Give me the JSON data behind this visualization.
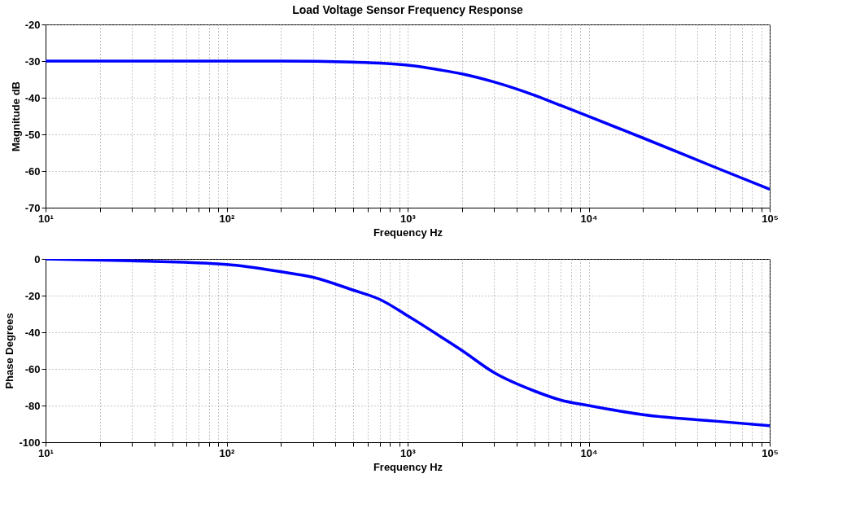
{
  "chart_data": [
    {
      "type": "line",
      "title": "Load Voltage Sensor Frequency Response",
      "xlabel": "Frequency Hz",
      "ylabel": "Magnitude dB",
      "log": "x",
      "x": [
        10,
        100,
        200,
        500,
        1000,
        1500,
        2000,
        3000,
        5000,
        7000,
        10000,
        20000,
        50000,
        100000
      ],
      "series": [
        {
          "color": "#0000ff",
          "values": [
            -30,
            -30,
            -30,
            -30.3,
            -31.1,
            -32.4,
            -33.5,
            -35.7,
            -39.3,
            -42.1,
            -45.1,
            -51.0,
            -59.0,
            -65.0
          ]
        }
      ],
      "xlim": [
        10,
        100000
      ],
      "ylim": [
        -70,
        -20
      ],
      "xticks": [
        {
          "value": 10,
          "label": "10¹"
        },
        {
          "value": 20,
          "label": null
        },
        {
          "value": 30,
          "label": null
        },
        {
          "value": 40,
          "label": null
        },
        {
          "value": 50,
          "label": null
        },
        {
          "value": 60,
          "label": null
        },
        {
          "value": 70,
          "label": null
        },
        {
          "value": 80,
          "label": null
        },
        {
          "value": 90,
          "label": null
        },
        {
          "value": 100,
          "label": "10²"
        },
        {
          "value": 200,
          "label": null
        },
        {
          "value": 300,
          "label": null
        },
        {
          "value": 400,
          "label": null
        },
        {
          "value": 500,
          "label": null
        },
        {
          "value": 600,
          "label": null
        },
        {
          "value": 700,
          "label": null
        },
        {
          "value": 800,
          "label": null
        },
        {
          "value": 900,
          "label": null
        },
        {
          "value": 1000,
          "label": "10³"
        },
        {
          "value": 2000,
          "label": null
        },
        {
          "value": 3000,
          "label": null
        },
        {
          "value": 4000,
          "label": null
        },
        {
          "value": 5000,
          "label": null
        },
        {
          "value": 6000,
          "label": null
        },
        {
          "value": 7000,
          "label": null
        },
        {
          "value": 8000,
          "label": null
        },
        {
          "value": 9000,
          "label": null
        },
        {
          "value": 10000,
          "label": "10⁴"
        },
        {
          "value": 20000,
          "label": null
        },
        {
          "value": 30000,
          "label": null
        },
        {
          "value": 40000,
          "label": null
        },
        {
          "value": 50000,
          "label": null
        },
        {
          "value": 60000,
          "label": null
        },
        {
          "value": 70000,
          "label": null
        },
        {
          "value": 80000,
          "label": null
        },
        {
          "value": 90000,
          "label": null
        },
        {
          "value": 100000,
          "label": "10⁵"
        }
      ],
      "yticks": [
        -70,
        -60,
        -50,
        -40,
        -30,
        -20
      ],
      "grid": true,
      "line_style": "solid",
      "marker": "none"
    },
    {
      "type": "line",
      "xlabel": "Frequency Hz",
      "ylabel": "Phase Degrees",
      "log": "x",
      "x": [
        10,
        30,
        100,
        200,
        300,
        500,
        700,
        1000,
        1500,
        2000,
        3000,
        5000,
        7000,
        10000,
        20000,
        50000,
        100000
      ],
      "series": [
        {
          "color": "#0000ff",
          "values": [
            0,
            -1,
            -3,
            -7,
            -10,
            -17,
            -22,
            -31,
            -42,
            -50,
            -62,
            -72,
            -77,
            -80,
            -85,
            -88.5,
            -91
          ]
        }
      ],
      "xlim": [
        10,
        100000
      ],
      "ylim": [
        -100,
        0
      ],
      "xticks": [
        {
          "value": 10,
          "label": "10¹"
        },
        {
          "value": 20,
          "label": null
        },
        {
          "value": 30,
          "label": null
        },
        {
          "value": 40,
          "label": null
        },
        {
          "value": 50,
          "label": null
        },
        {
          "value": 60,
          "label": null
        },
        {
          "value": 70,
          "label": null
        },
        {
          "value": 80,
          "label": null
        },
        {
          "value": 90,
          "label": null
        },
        {
          "value": 100,
          "label": "10²"
        },
        {
          "value": 200,
          "label": null
        },
        {
          "value": 300,
          "label": null
        },
        {
          "value": 400,
          "label": null
        },
        {
          "value": 500,
          "label": null
        },
        {
          "value": 600,
          "label": null
        },
        {
          "value": 700,
          "label": null
        },
        {
          "value": 800,
          "label": null
        },
        {
          "value": 900,
          "label": null
        },
        {
          "value": 1000,
          "label": "10³"
        },
        {
          "value": 2000,
          "label": null
        },
        {
          "value": 3000,
          "label": null
        },
        {
          "value": 4000,
          "label": null
        },
        {
          "value": 5000,
          "label": null
        },
        {
          "value": 6000,
          "label": null
        },
        {
          "value": 7000,
          "label": null
        },
        {
          "value": 8000,
          "label": null
        },
        {
          "value": 9000,
          "label": null
        },
        {
          "value": 10000,
          "label": "10⁴"
        },
        {
          "value": 20000,
          "label": null
        },
        {
          "value": 30000,
          "label": null
        },
        {
          "value": 40000,
          "label": null
        },
        {
          "value": 50000,
          "label": null
        },
        {
          "value": 60000,
          "label": null
        },
        {
          "value": 70000,
          "label": null
        },
        {
          "value": 80000,
          "label": null
        },
        {
          "value": 90000,
          "label": null
        },
        {
          "value": 100000,
          "label": "10⁵"
        }
      ],
      "yticks": [
        -100,
        -80,
        -60,
        -40,
        -20,
        0
      ],
      "grid": true,
      "line_style": "solid",
      "marker": "none"
    }
  ]
}
